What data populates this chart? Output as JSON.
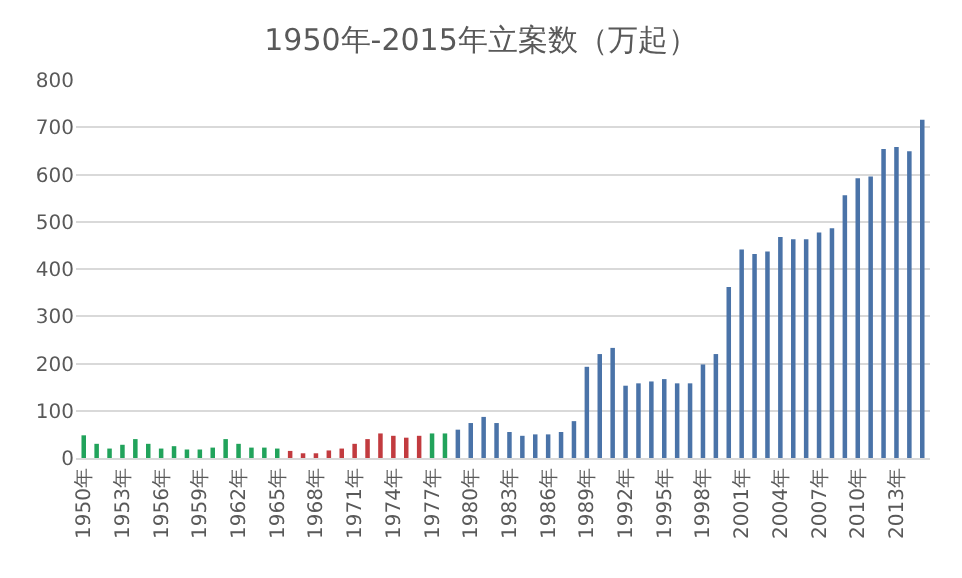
{
  "chart_data": {
    "type": "bar",
    "title": "1950年-2015年立案数（万起）",
    "categories": [
      "1950年",
      null,
      null,
      "1953年",
      null,
      null,
      "1956年",
      null,
      null,
      "1959年",
      null,
      null,
      "1962年",
      null,
      null,
      "1965年",
      null,
      null,
      "1968年",
      null,
      null,
      "1971年",
      null,
      null,
      "1974年",
      null,
      null,
      "1977年",
      null,
      null,
      "1980年",
      null,
      null,
      "1983年",
      null,
      null,
      "1986年",
      null,
      null,
      "1989年",
      null,
      null,
      "1992年",
      null,
      null,
      "1995年",
      null,
      null,
      "1998年",
      null,
      null,
      "2001年",
      null,
      null,
      "2004年",
      null,
      null,
      "2007年",
      null,
      null,
      "2010年",
      null,
      null,
      "2013年",
      null,
      null
    ],
    "values": [
      48,
      30,
      20,
      28,
      40,
      30,
      20,
      25,
      18,
      18,
      22,
      40,
      30,
      22,
      22,
      20,
      15,
      10,
      10,
      16,
      20,
      30,
      40,
      52,
      47,
      43,
      47,
      52,
      52,
      60,
      74,
      87,
      74,
      55,
      47,
      50,
      50,
      55,
      78,
      193,
      220,
      233,
      153,
      158,
      162,
      167,
      158,
      158,
      198,
      220,
      362,
      441,
      432,
      437,
      468,
      463,
      463,
      477,
      486,
      556,
      592,
      596,
      654,
      658,
      649,
      716
    ],
    "colors": [
      "#21a35b",
      "#21a35b",
      "#21a35b",
      "#21a35b",
      "#21a35b",
      "#21a35b",
      "#21a35b",
      "#21a35b",
      "#21a35b",
      "#21a35b",
      "#21a35b",
      "#21a35b",
      "#21a35b",
      "#21a35b",
      "#21a35b",
      "#21a35b",
      "#c23b3f",
      "#c23b3f",
      "#c23b3f",
      "#c23b3f",
      "#c23b3f",
      "#c23b3f",
      "#c23b3f",
      "#c23b3f",
      "#c23b3f",
      "#c23b3f",
      "#c23b3f",
      "#21a35b",
      "#21a35b",
      "#4a73a8",
      "#4a73a8",
      "#4a73a8",
      "#4a73a8",
      "#4a73a8",
      "#4a73a8",
      "#4a73a8",
      "#4a73a8",
      "#4a73a8",
      "#4a73a8",
      "#4a73a8",
      "#4a73a8",
      "#4a73a8",
      "#4a73a8",
      "#4a73a8",
      "#4a73a8",
      "#4a73a8",
      "#4a73a8",
      "#4a73a8",
      "#4a73a8",
      "#4a73a8",
      "#4a73a8",
      "#4a73a8",
      "#4a73a8",
      "#4a73a8",
      "#4a73a8",
      "#4a73a8",
      "#4a73a8",
      "#4a73a8",
      "#4a73a8",
      "#4a73a8",
      "#4a73a8",
      "#4a73a8",
      "#4a73a8",
      "#4a73a8",
      "#4a73a8",
      "#4a73a8"
    ],
    "ylim": [
      0,
      800
    ],
    "yticks": [
      0,
      100,
      200,
      300,
      400,
      500,
      600,
      700,
      800
    ],
    "grid": "y"
  }
}
